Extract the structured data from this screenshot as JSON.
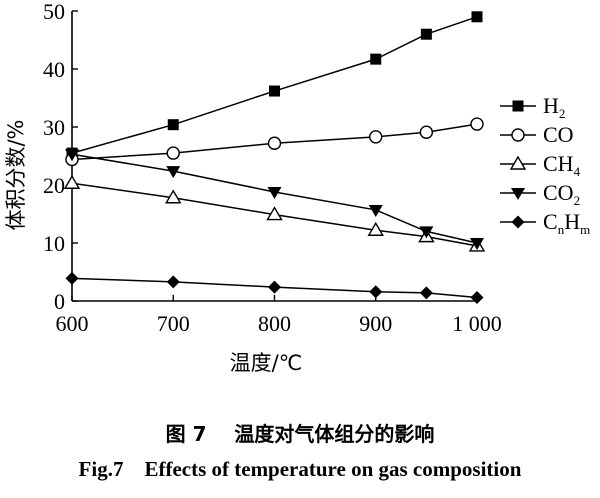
{
  "chart_data": {
    "type": "line",
    "x": [
      600,
      700,
      800,
      900,
      950,
      1000
    ],
    "xticks": [
      "600",
      "700",
      "800",
      "900",
      "1 000"
    ],
    "xtick_values": [
      600,
      700,
      800,
      900,
      1000
    ],
    "yticks": [
      "0",
      "10",
      "20",
      "30",
      "40",
      "50"
    ],
    "ytick_values": [
      0,
      10,
      20,
      30,
      40,
      50
    ],
    "xlim": [
      600,
      1000
    ],
    "ylim": [
      0,
      50
    ],
    "xlabel": "温度/℃",
    "ylabel": "体积分数/%",
    "grid": false,
    "legend_position": "right",
    "series": [
      {
        "name": "H2",
        "label_main": "H",
        "label_sub": "2",
        "marker": "filled-square",
        "values": [
          25.5,
          30.4,
          36.2,
          41.7,
          46.0,
          49.0
        ]
      },
      {
        "name": "CO",
        "label_main": "CO",
        "label_sub": "",
        "marker": "open-circle",
        "values": [
          24.4,
          25.5,
          27.2,
          28.3,
          29.1,
          30.5
        ]
      },
      {
        "name": "CH4",
        "label_main": "CH",
        "label_sub": "4",
        "marker": "open-triangle-up",
        "values": [
          20.3,
          17.8,
          14.9,
          12.2,
          11.1,
          9.5
        ]
      },
      {
        "name": "CO2",
        "label_main": "CO",
        "label_sub": "2",
        "marker": "filled-triangle-down",
        "values": [
          25.3,
          22.4,
          18.8,
          15.7,
          12.0,
          10.0
        ]
      },
      {
        "name": "CnHm",
        "label_main": "C",
        "label_sub": "n",
        "label_main2": "H",
        "label_sub2": "m",
        "marker": "filled-diamond",
        "values": [
          3.9,
          3.3,
          2.4,
          1.6,
          1.4,
          0.6
        ]
      }
    ]
  },
  "caption": {
    "cn": "图 7    温度对气体组分的影响",
    "en": "Fig.7    Effects of temperature on gas composition"
  },
  "colors": {
    "line": "#000000",
    "background": "#ffffff"
  }
}
